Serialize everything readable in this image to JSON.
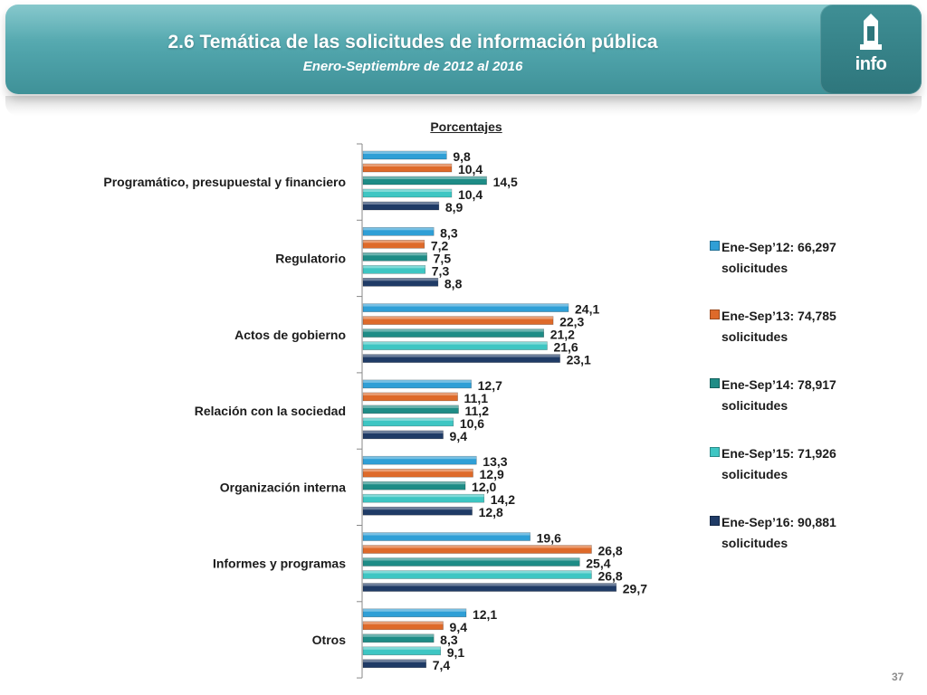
{
  "header": {
    "title": "2.6 Temática de las solicitudes de información pública",
    "subtitle": "Enero-Septiembre de 2012 al 2016",
    "logo_text": "info",
    "logo_icon": "monument-icon"
  },
  "chart_data": {
    "type": "bar",
    "orientation": "horizontal",
    "title": "Porcentajes",
    "categories": [
      "Programático, presupuestal y financiero",
      "Regulatorio",
      "Actos de gobierno",
      "Relación con la sociedad",
      "Organización interna",
      "Informes y programas",
      "Otros"
    ],
    "series": [
      {
        "name": "Ene-Sep’12: 66,297 solicitudes",
        "color": "#2f9fd6",
        "values": [
          9.8,
          8.3,
          24.1,
          12.7,
          13.3,
          19.6,
          12.1
        ],
        "labels": [
          "9,8",
          "8,3",
          "24,1",
          "12,7",
          "13,3",
          "19,6",
          "12,1"
        ]
      },
      {
        "name": "Ene-Sep’13: 74,785 solicitudes",
        "color": "#de6a2a",
        "values": [
          10.4,
          7.2,
          22.3,
          11.1,
          12.9,
          26.8,
          9.4
        ],
        "labels": [
          "10,4",
          "7,2",
          "22,3",
          "11,1",
          "12,9",
          "26,8",
          "9,4"
        ]
      },
      {
        "name": "Ene-Sep’14: 78,917 solicitudes",
        "color": "#1e8c86",
        "values": [
          14.5,
          7.5,
          21.2,
          11.2,
          12.0,
          25.4,
          8.3
        ],
        "labels": [
          "14,5",
          "7,5",
          "21,2",
          "11,2",
          "12,0",
          "25,4",
          "8,3"
        ]
      },
      {
        "name": "Ene-Sep’15: 71,926 solicitudes",
        "color": "#3ec6c3",
        "values": [
          10.4,
          7.3,
          21.6,
          10.6,
          14.2,
          26.8,
          9.1
        ],
        "labels": [
          "10,4",
          "7,3",
          "21,6",
          "10,6",
          "14,2",
          "26,8",
          "9,1"
        ]
      },
      {
        "name": "Ene-Sep’16: 90,881 solicitudes",
        "color": "#1f3b66",
        "values": [
          8.9,
          8.8,
          23.1,
          9.4,
          12.8,
          29.7,
          7.4
        ],
        "labels": [
          "8,9",
          "8,8",
          "23,1",
          "9,4",
          "12,8",
          "29,7",
          "7,4"
        ]
      }
    ],
    "xlim": [
      0,
      35
    ],
    "grid": false,
    "legend_position": "right"
  },
  "legend": {
    "items": [
      {
        "line1": "Ene-Sep’12: 66,297",
        "line2": "solicitudes",
        "color": "#2f9fd6"
      },
      {
        "line1": "Ene-Sep’13: 74,785",
        "line2": "solicitudes",
        "color": "#de6a2a"
      },
      {
        "line1": "Ene-Sep’14: 78,917",
        "line2": "solicitudes",
        "color": "#1e8c86"
      },
      {
        "line1": "Ene-Sep’15: 71,926",
        "line2": "solicitudes",
        "color": "#3ec6c3"
      },
      {
        "line1": "Ene-Sep’16: 90,881",
        "line2": "solicitudes",
        "color": "#1f3b66"
      }
    ]
  },
  "page_number": "37"
}
